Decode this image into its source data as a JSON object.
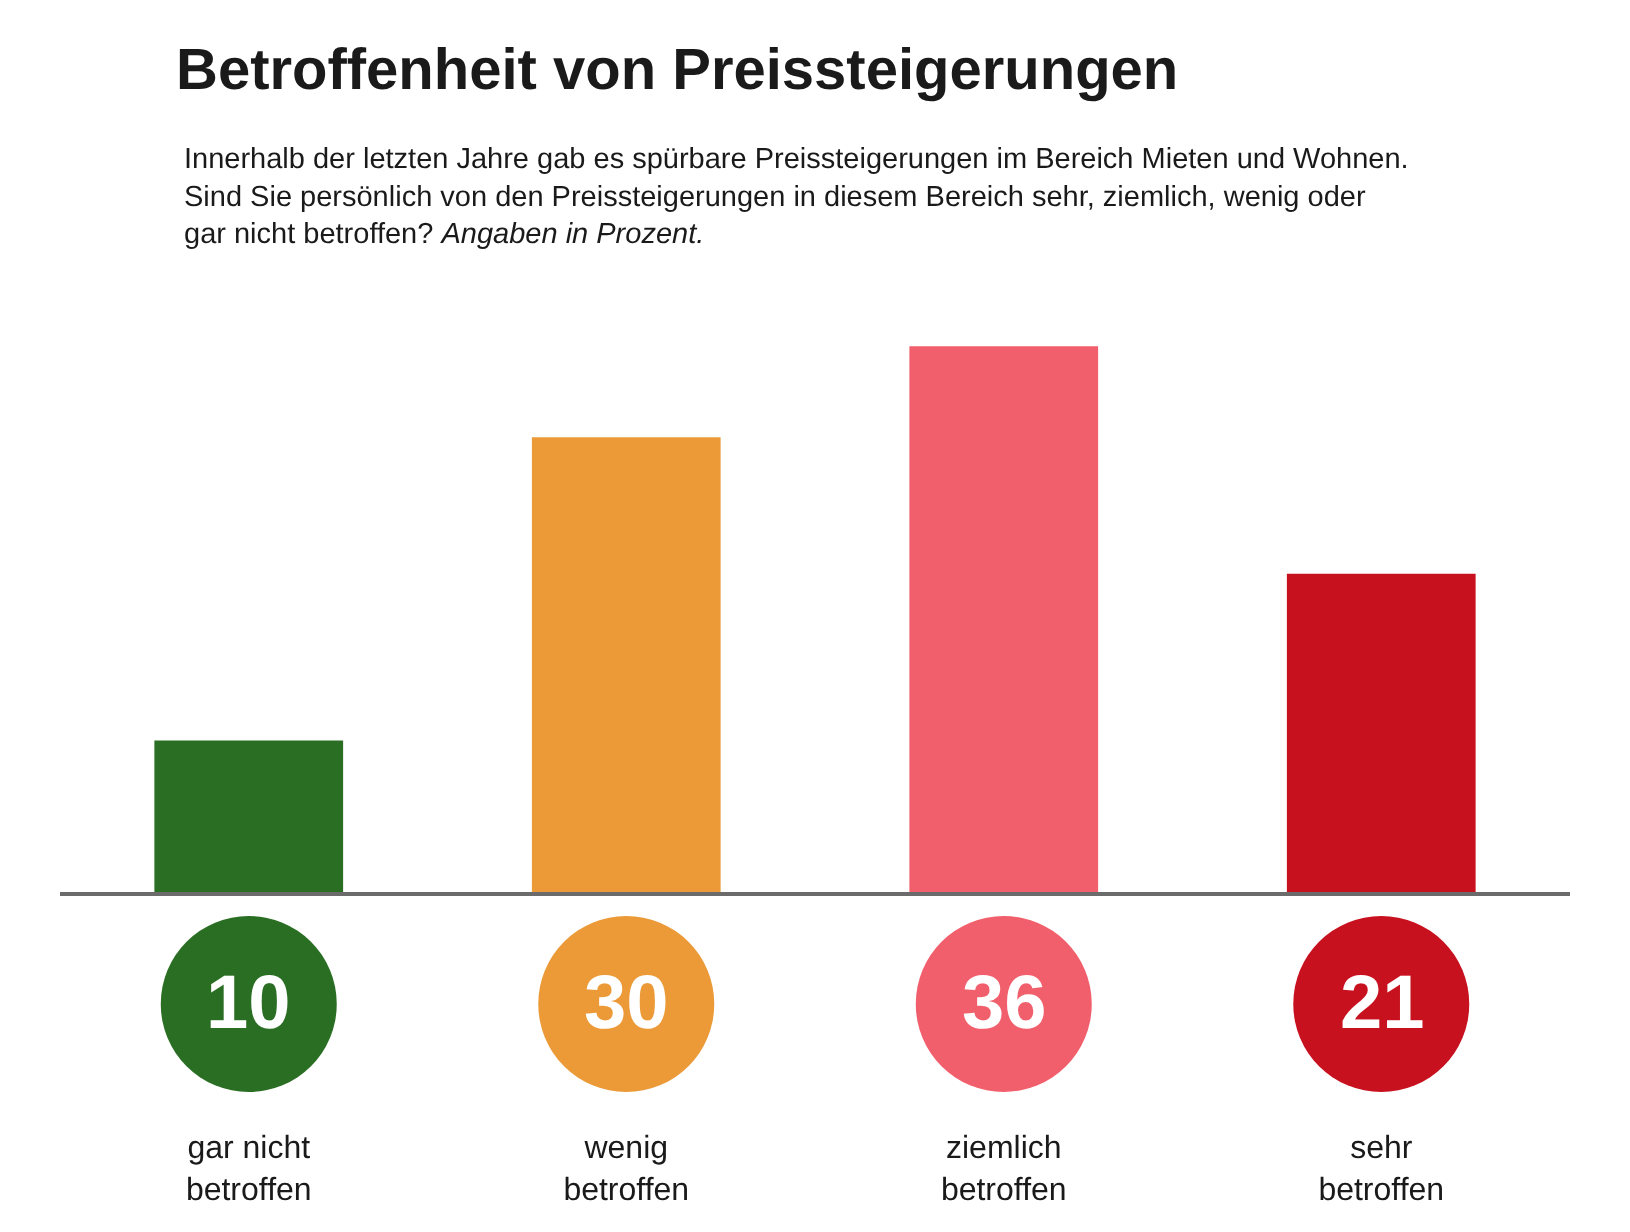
{
  "chart_data": {
    "type": "bar",
    "title": "Betroffenheit von Preissteigerungen",
    "subtitle": "Innerhalb der letzten Jahre gab es spürbare Preissteigerungen im Bereich Mieten und Wohnen. Sind Sie persönlich von den Preissteigerungen in diesem Bereich sehr, ziemlich, wenig oder gar nicht betroffen?",
    "annotations": [
      "Angaben in Prozent."
    ],
    "categories": [
      "gar nicht betroffen",
      "wenig betroffen",
      "ziemlich betroffen",
      "sehr betroffen"
    ],
    "values": [
      10,
      30,
      36,
      21
    ],
    "colors": [
      "#2a6e23",
      "#eb9a37",
      "#f15f6c",
      "#c8111e"
    ],
    "data_labels": true
  }
}
